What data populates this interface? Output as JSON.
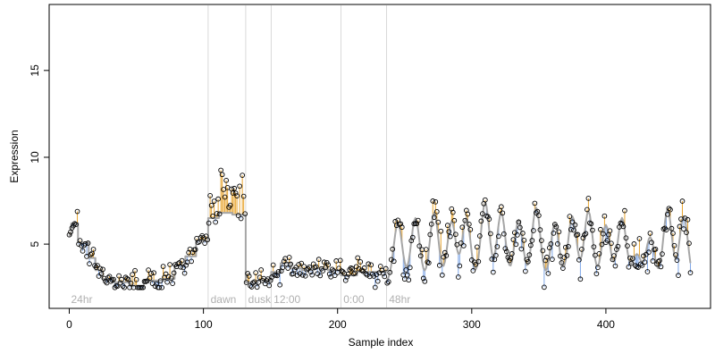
{
  "chart_data": {
    "type": "scatter",
    "xlabel": "Sample index",
    "ylabel": "Expression",
    "xlim": [
      -15,
      478
    ],
    "ylim": [
      1.3,
      18.8
    ],
    "x_ticks": [
      0,
      100,
      200,
      300,
      400
    ],
    "y_ticks": [
      5,
      10,
      15
    ],
    "grid": false,
    "legend": "none",
    "colors": {
      "fitted_line": "#a6a6a6",
      "fitted_line_early": "#7fa7e8",
      "residual_positive": "#e8a530",
      "residual_negative": "#7fa7e8",
      "points_stroke": "#000000",
      "separators": "#d9d9d9",
      "segment_labels": "#b0b0b0"
    },
    "segments": [
      {
        "label": "24hr",
        "x_start": 0
      },
      {
        "label": "dawn",
        "x_start": 104
      },
      {
        "label": "dusk",
        "x_start": 132
      },
      {
        "label": "12:00",
        "x_start": 151
      },
      {
        "label": "0:00",
        "x_start": 203
      },
      {
        "label": "48hr",
        "x_start": 237
      }
    ],
    "baseline_blocks": [
      [
        0,
        1,
        5.5
      ],
      [
        2,
        6,
        6.2
      ],
      [
        7,
        14,
        5.1
      ],
      [
        15,
        19,
        4.2
      ],
      [
        20,
        24,
        3.5
      ],
      [
        25,
        32,
        3.0
      ],
      [
        33,
        45,
        2.8
      ],
      [
        46,
        55,
        2.6
      ],
      [
        56,
        70,
        2.9
      ],
      [
        71,
        78,
        3.0
      ],
      [
        79,
        86,
        3.8
      ],
      [
        87,
        94,
        4.3
      ],
      [
        95,
        103,
        5.2
      ],
      [
        104,
        111,
        6.5
      ],
      [
        112,
        121,
        6.8
      ],
      [
        122,
        131,
        6.7
      ],
      [
        132,
        140,
        2.8
      ],
      [
        141,
        150,
        2.9
      ],
      [
        151,
        157,
        3.4
      ],
      [
        158,
        165,
        3.9
      ],
      [
        166,
        173,
        3.6
      ],
      [
        174,
        182,
        3.5
      ],
      [
        183,
        192,
        3.6
      ],
      [
        193,
        202,
        3.5
      ],
      [
        203,
        214,
        3.2
      ],
      [
        215,
        236,
        3.4
      ]
    ],
    "oscillation": {
      "x_start": 237,
      "x_end": 463,
      "peaks": [
        [
          245,
          6.2
        ],
        [
          258,
          6.5
        ],
        [
          272,
          6.8
        ],
        [
          285,
          6.3
        ],
        [
          296,
          6.5
        ],
        [
          310,
          7.4
        ],
        [
          322,
          6.8
        ],
        [
          335,
          6.4
        ],
        [
          348,
          7.1
        ],
        [
          362,
          6.2
        ],
        [
          375,
          6.6
        ],
        [
          387,
          6.9
        ],
        [
          400,
          6.1
        ],
        [
          412,
          6.5
        ],
        [
          423,
          4.4
        ],
        [
          433,
          5.4
        ],
        [
          446,
          7.0
        ],
        [
          458,
          6.6
        ]
      ],
      "trough_level": 2.8,
      "peak_width": 4.5
    },
    "point_seed": 20231
  }
}
